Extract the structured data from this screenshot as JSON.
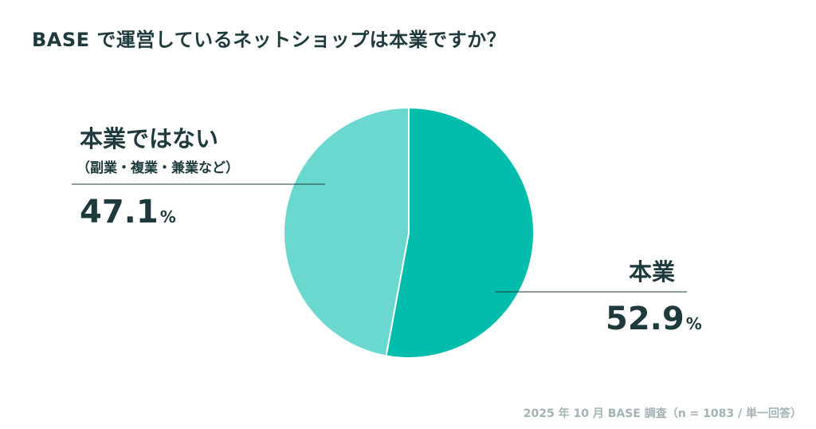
{
  "title": "BASE で運営しているネットショップは本業ですか？",
  "source": "2025 年 10 月 BASE 調査（n = 1083 / 単一回答）",
  "colors": {
    "honkyo": "#02bcac",
    "not_honkyo": "#6bd8cf",
    "text": "#1f3a3d",
    "leader": "#1f3a3d",
    "source": "#a3b2b4"
  },
  "chart_data": {
    "type": "pie",
    "title": "BASE で運営しているネットショップは本業ですか？",
    "unit": "%",
    "slices": [
      {
        "label": "本業",
        "sublabel": "",
        "value": 52.9,
        "value_text": "52.9",
        "color": "#02bcac"
      },
      {
        "label": "本業ではない",
        "sublabel": "（副業・複業・兼業など）",
        "value": 47.1,
        "value_text": "47.1",
        "color": "#6bd8cf"
      }
    ],
    "legend": "none",
    "start_angle": "top",
    "direction": "clockwise"
  }
}
